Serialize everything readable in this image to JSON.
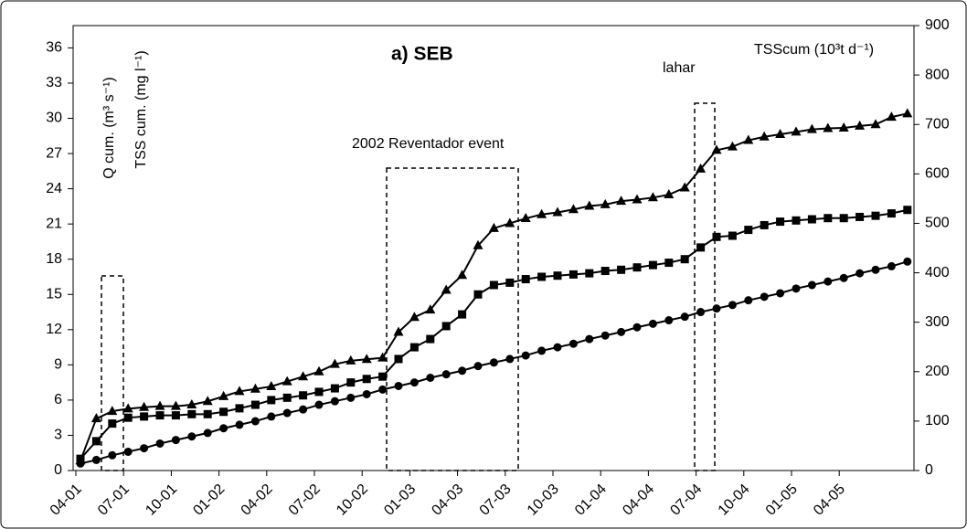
{
  "chart_data": {
    "type": "line",
    "title": "a) SEB",
    "y_label": "Q cum. (m³ s⁻¹)",
    "y_label_2": "TSS cum. (mg l⁻¹)",
    "y2_label": "TSScum (10³t d⁻¹)",
    "annotations": [
      "2002 Reventador event",
      "lahar"
    ],
    "categories": [
      "04-01",
      null,
      null,
      "07-01",
      null,
      null,
      "10-01",
      null,
      null,
      "01-02",
      null,
      null,
      "04-02",
      null,
      null,
      "07-02",
      null,
      null,
      "10-02",
      null,
      null,
      "01-03",
      null,
      null,
      "04-03",
      null,
      null,
      "07-03",
      null,
      null,
      "10-03",
      null,
      null,
      "01-04",
      null,
      null,
      "04-04",
      null,
      null,
      "07-04",
      null,
      null,
      "10-04",
      null,
      null,
      "01-05",
      null,
      null,
      "04-05",
      null,
      null,
      null,
      null
    ],
    "ylim": [
      0,
      37.9
    ],
    "yticks": [
      0,
      3,
      6,
      9,
      12,
      15,
      18,
      21,
      24,
      27,
      30,
      33,
      36
    ],
    "y2lim": [
      0,
      900
    ],
    "y2ticks": [
      0,
      100,
      200,
      300,
      400,
      500,
      600,
      700,
      800,
      900
    ],
    "series": [
      {
        "marker": "circle",
        "color": "#000000",
        "values": [
          0.6,
          0.9,
          1.3,
          1.6,
          1.9,
          2.3,
          2.6,
          2.9,
          3.2,
          3.6,
          3.9,
          4.2,
          4.6,
          4.9,
          5.2,
          5.6,
          5.9,
          6.2,
          6.5,
          6.9,
          7.2,
          7.5,
          7.9,
          8.2,
          8.5,
          8.9,
          9.2,
          9.5,
          9.8,
          10.2,
          10.5,
          10.8,
          11.2,
          11.5,
          11.8,
          12.2,
          12.5,
          12.8,
          13.1,
          13.5,
          13.8,
          14.1,
          14.5,
          14.8,
          15.1,
          15.5,
          15.8,
          16.1,
          16.4,
          16.8,
          17.1,
          17.4,
          17.8
        ]
      },
      {
        "marker": "square",
        "color": "#000000",
        "values": [
          1.0,
          2.5,
          4.0,
          4.5,
          4.6,
          4.7,
          4.7,
          4.8,
          4.8,
          5.0,
          5.3,
          5.6,
          6.0,
          6.2,
          6.4,
          6.7,
          7.0,
          7.5,
          7.8,
          8.0,
          9.5,
          10.5,
          11.2,
          12.3,
          13.3,
          15.0,
          15.8,
          16.0,
          16.3,
          16.5,
          16.6,
          16.7,
          16.8,
          17.0,
          17.1,
          17.3,
          17.5,
          17.7,
          18.0,
          19.0,
          19.9,
          20.0,
          20.5,
          20.9,
          21.2,
          21.3,
          21.4,
          21.5,
          21.5,
          21.6,
          21.7,
          21.9,
          22.2
        ]
      },
      {
        "marker": "triangle",
        "color": "#000000",
        "axis": "y2",
        "values": [
          20,
          105,
          120,
          125,
          128,
          130,
          130,
          133,
          140,
          150,
          160,
          165,
          170,
          180,
          190,
          200,
          215,
          222,
          225,
          228,
          280,
          310,
          325,
          365,
          395,
          455,
          490,
          500,
          510,
          518,
          522,
          528,
          535,
          538,
          545,
          548,
          552,
          558,
          572,
          610,
          648,
          655,
          668,
          675,
          680,
          685,
          690,
          692,
          693,
          697,
          700,
          715,
          722
        ]
      }
    ]
  }
}
